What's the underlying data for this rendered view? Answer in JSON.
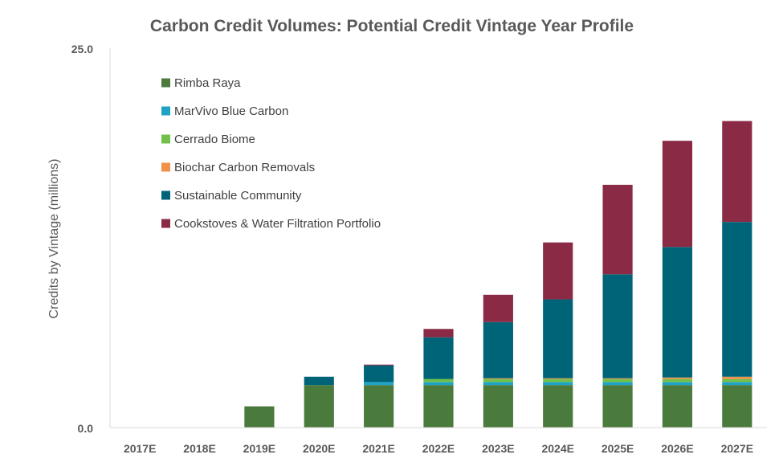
{
  "chart_data": {
    "type": "bar",
    "stacked": true,
    "title": "Carbon Credit Volumes: Potential Credit Vintage Year Profile",
    "xlabel": "",
    "ylabel": "Credits by Vintage (millions)",
    "ylim": [
      0,
      25
    ],
    "ytick_labels": [
      "0.0",
      "25.0"
    ],
    "grid": false,
    "legend_position": "top-left",
    "categories": [
      "2017E",
      "2018E",
      "2019E",
      "2020E",
      "2021E",
      "2022E",
      "2023E",
      "2024E",
      "2025E",
      "2026E",
      "2027E"
    ],
    "series": [
      {
        "name": "Rimba Raya",
        "color": "#4a7a3c",
        "values": [
          0,
          0,
          1.4,
          2.8,
          2.8,
          2.8,
          2.8,
          2.8,
          2.8,
          2.8,
          2.8
        ]
      },
      {
        "name": "MarVivo Blue Carbon",
        "color": "#1fa3c4",
        "values": [
          0,
          0,
          0,
          0,
          0.2,
          0.2,
          0.2,
          0.2,
          0.2,
          0.2,
          0.2
        ]
      },
      {
        "name": "Cerrado Biome",
        "color": "#70c14a",
        "values": [
          0,
          0,
          0,
          0,
          0,
          0.2,
          0.2,
          0.2,
          0.2,
          0.2,
          0.2
        ]
      },
      {
        "name": "Biochar Carbon Removals",
        "color": "#f0924a",
        "values": [
          0,
          0,
          0,
          0,
          0,
          0,
          0.05,
          0.05,
          0.05,
          0.1,
          0.15
        ]
      },
      {
        "name": "Sustainable Community",
        "color": "#006479",
        "values": [
          0,
          0,
          0,
          0.55,
          1.1,
          2.75,
          3.7,
          5.2,
          6.85,
          8.6,
          10.2
        ]
      },
      {
        "name": "Cookstoves & Water Filtration Portfolio",
        "color": "#8b2a45",
        "values": [
          0,
          0,
          0,
          0,
          0.05,
          0.55,
          1.8,
          3.75,
          5.9,
          7.0,
          6.65
        ]
      }
    ]
  }
}
